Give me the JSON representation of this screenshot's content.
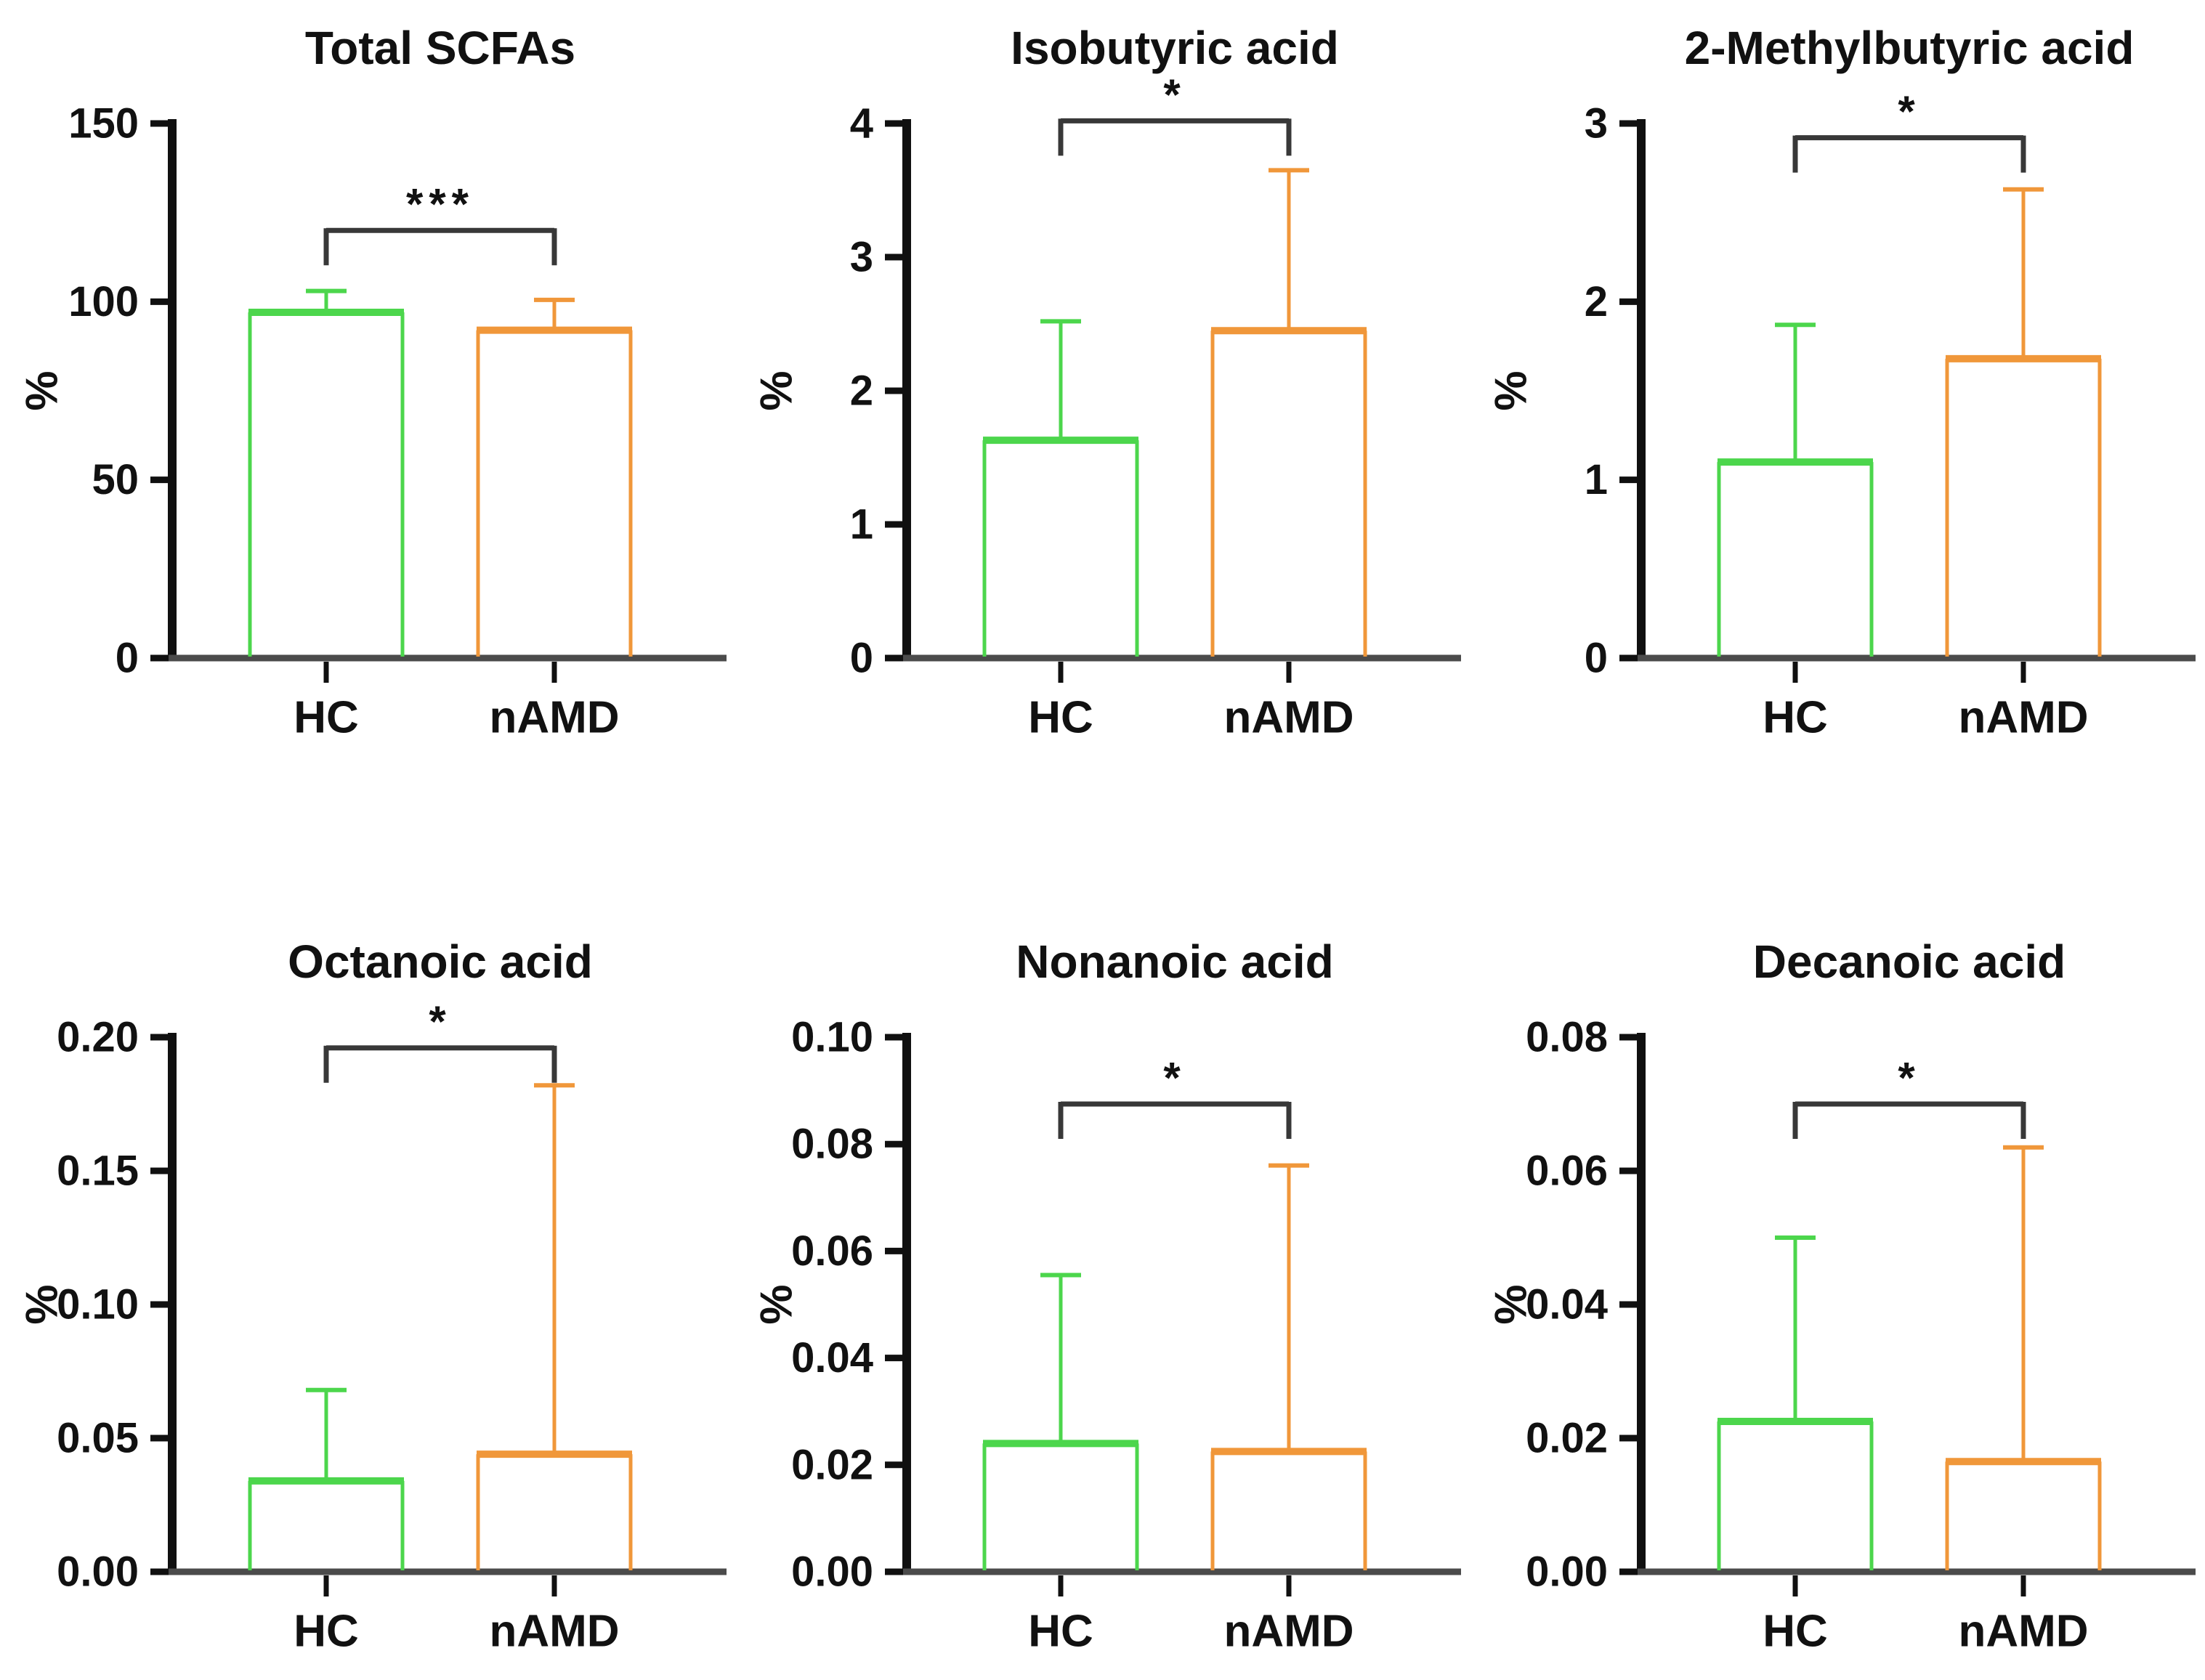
{
  "figure": {
    "background": "#ffffff",
    "text_color": "#111111",
    "axis_color": "#101010",
    "baseline_color": "#4b4b4b",
    "bracket_color": "#383838",
    "group_colors": {
      "HC": "#4cd64c",
      "nAMD": "#f0973a"
    }
  },
  "chart_data": [
    {
      "type": "bar",
      "title": "Total SCFAs",
      "ylabel": "%",
      "xlabel": "",
      "categories": [
        "HC",
        "nAMD"
      ],
      "values": [
        97,
        92
      ],
      "error_upper_tops": [
        103,
        100.5
      ],
      "ylim": [
        0,
        150
      ],
      "yticks": [
        0,
        50,
        100,
        150
      ],
      "ytick_labels": [
        "0",
        "50",
        "100",
        "150"
      ],
      "grid": false,
      "legend": "none",
      "significance": {
        "label": "***",
        "bracket_y": 120,
        "between": [
          "HC",
          "nAMD"
        ]
      }
    },
    {
      "type": "bar",
      "title": "Isobutyric acid",
      "ylabel": "%",
      "xlabel": "",
      "categories": [
        "HC",
        "nAMD"
      ],
      "values": [
        1.63,
        2.45
      ],
      "error_upper_tops": [
        2.52,
        3.65
      ],
      "ylim": [
        0,
        4
      ],
      "yticks": [
        0,
        1,
        2,
        3,
        4
      ],
      "ytick_labels": [
        "0",
        "1",
        "2",
        "3",
        "4"
      ],
      "grid": false,
      "legend": "none",
      "significance": {
        "label": "*",
        "bracket_y": 4.02,
        "between": [
          "HC",
          "nAMD"
        ]
      }
    },
    {
      "type": "bar",
      "title": "2-Methylbutyric acid",
      "ylabel": "%",
      "xlabel": "",
      "categories": [
        "HC",
        "nAMD"
      ],
      "values": [
        1.1,
        1.68
      ],
      "error_upper_tops": [
        1.87,
        2.63
      ],
      "ylim": [
        0,
        3
      ],
      "yticks": [
        0,
        1,
        2,
        3
      ],
      "ytick_labels": [
        "0",
        "1",
        "2",
        "3"
      ],
      "grid": false,
      "legend": "none",
      "significance": {
        "label": "*",
        "bracket_y": 2.92,
        "between": [
          "HC",
          "nAMD"
        ]
      }
    },
    {
      "type": "bar",
      "title": "Octanoic acid",
      "ylabel": "%",
      "xlabel": "",
      "categories": [
        "HC",
        "nAMD"
      ],
      "values": [
        0.034,
        0.044
      ],
      "error_upper_tops": [
        0.068,
        0.182
      ],
      "ylim": [
        0,
        0.2
      ],
      "yticks": [
        0,
        0.05,
        0.1,
        0.15,
        0.2
      ],
      "ytick_labels": [
        "0.00",
        "0.05",
        "0.10",
        "0.15",
        "0.20"
      ],
      "grid": false,
      "legend": "none",
      "significance": {
        "label": "*",
        "bracket_y": 0.196,
        "between": [
          "HC",
          "nAMD"
        ]
      }
    },
    {
      "type": "bar",
      "title": "Nonanoic acid",
      "ylabel": "%",
      "xlabel": "",
      "categories": [
        "HC",
        "nAMD"
      ],
      "values": [
        0.024,
        0.0225
      ],
      "error_upper_tops": [
        0.0555,
        0.076
      ],
      "ylim": [
        0,
        0.1
      ],
      "yticks": [
        0,
        0.02,
        0.04,
        0.06,
        0.08,
        0.1
      ],
      "ytick_labels": [
        "0.00",
        "0.02",
        "0.04",
        "0.06",
        "0.08",
        "0.10"
      ],
      "grid": false,
      "legend": "none",
      "significance": {
        "label": "*",
        "bracket_y": 0.0875,
        "between": [
          "HC",
          "nAMD"
        ]
      }
    },
    {
      "type": "bar",
      "title": "Decanoic acid",
      "ylabel": "%",
      "xlabel": "",
      "categories": [
        "HC",
        "nAMD"
      ],
      "values": [
        0.0225,
        0.0165
      ],
      "error_upper_tops": [
        0.05,
        0.0635
      ],
      "ylim": [
        0,
        0.08
      ],
      "yticks": [
        0,
        0.02,
        0.04,
        0.06,
        0.08
      ],
      "ytick_labels": [
        "0.00",
        "0.02",
        "0.04",
        "0.06",
        "0.08"
      ],
      "grid": false,
      "legend": "none",
      "significance": {
        "label": "*",
        "bracket_y": 0.07,
        "between": [
          "HC",
          "nAMD"
        ]
      }
    }
  ]
}
